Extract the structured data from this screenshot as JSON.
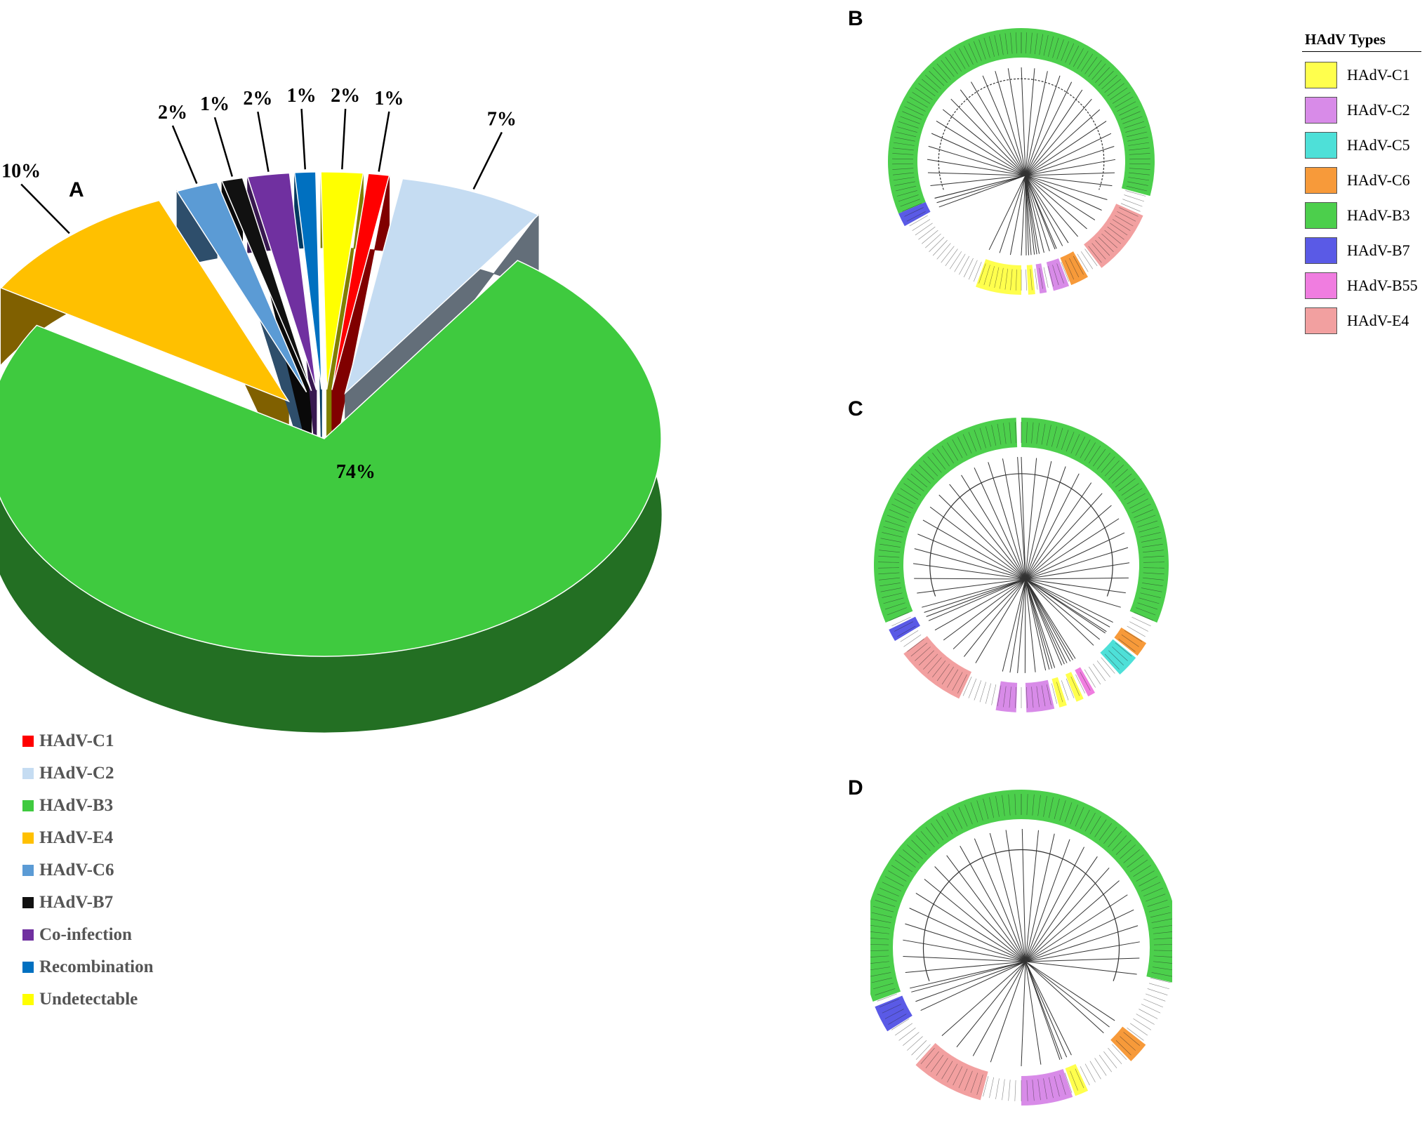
{
  "panels": {
    "a": "A",
    "b": "B",
    "c": "C",
    "d": "D"
  },
  "chart_data": [
    {
      "type": "pie",
      "panel": "A",
      "slices": [
        {
          "label": "HAdV-B3",
          "value": 74,
          "value_label": "74%",
          "color": "#3fca3f",
          "exploded": false
        },
        {
          "label": "HAdV-E4",
          "value": 10,
          "value_label": "10%",
          "color": "#ffc000",
          "exploded": true
        },
        {
          "label": "HAdV-C6",
          "value": 2,
          "value_label": "2%",
          "color": "#5b9bd5",
          "exploded": true
        },
        {
          "label": "HAdV-B7",
          "value": 1,
          "value_label": "1%",
          "color": "#111111",
          "exploded": true
        },
        {
          "label": "Co-infection",
          "value": 2,
          "value_label": "2%",
          "color": "#7030a0",
          "exploded": true
        },
        {
          "label": "Recombination",
          "value": 1,
          "value_label": "1%",
          "color": "#0070c0",
          "exploded": true
        },
        {
          "label": "Undetectable",
          "value": 2,
          "value_label": "2%",
          "color": "#ffff00",
          "exploded": true
        },
        {
          "label": "HAdV-C1",
          "value": 1,
          "value_label": "1%",
          "color": "#ff0000",
          "exploded": true
        },
        {
          "label": "HAdV-C2",
          "value": 7,
          "value_label": "7%",
          "color": "#c5dcf2",
          "exploded": true
        }
      ],
      "legend": [
        {
          "label": "HAdV-C1",
          "color": "#ff0000"
        },
        {
          "label": "HAdV-C2",
          "color": "#c5dcf2"
        },
        {
          "label": "HAdV-B3",
          "color": "#3fca3f"
        },
        {
          "label": "HAdV-E4",
          "color": "#ffc000"
        },
        {
          "label": "HAdV-C6",
          "color": "#5b9bd5"
        },
        {
          "label": "HAdV-B7",
          "color": "#111111"
        },
        {
          "label": "Co-infection",
          "color": "#7030a0"
        },
        {
          "label": "Recombination",
          "color": "#0070c0"
        },
        {
          "label": "Undetectable",
          "color": "#ffff00"
        }
      ],
      "legend_position": "bottom-left"
    },
    {
      "type": "tree",
      "panel": "B",
      "layout": "circular",
      "tip_groups": [
        {
          "type": "HAdV-B3",
          "start_deg": -113,
          "end_deg": 105
        },
        {
          "type": "HAdV-E4",
          "start_deg": 114,
          "end_deg": 143
        },
        {
          "type": "HAdV-C6",
          "start_deg": 150,
          "end_deg": 158
        },
        {
          "type": "HAdV-C2",
          "start_deg": 159,
          "end_deg": 166
        },
        {
          "type": "HAdV-C2",
          "start_deg": 169,
          "end_deg": 172
        },
        {
          "type": "HAdV-C1",
          "start_deg": 174,
          "end_deg": 177
        },
        {
          "type": "HAdV-C1",
          "start_deg": 180,
          "end_deg": 200
        },
        {
          "type": "HAdV-B7",
          "start_deg": 241,
          "end_deg": 247
        }
      ]
    },
    {
      "type": "tree",
      "panel": "C",
      "layout": "circular",
      "tip_groups": [
        {
          "type": "HAdV-B3",
          "start_deg": 0,
          "end_deg": 113
        },
        {
          "type": "HAdV-B3",
          "start_deg": 247,
          "end_deg": 358
        },
        {
          "type": "HAdV-C6",
          "start_deg": 122,
          "end_deg": 128
        },
        {
          "type": "HAdV-C5",
          "start_deg": 129,
          "end_deg": 138
        },
        {
          "type": "HAdV-B55",
          "start_deg": 150,
          "end_deg": 153
        },
        {
          "type": "HAdV-C1",
          "start_deg": 155,
          "end_deg": 158
        },
        {
          "type": "HAdV-C1",
          "start_deg": 162,
          "end_deg": 165
        },
        {
          "type": "HAdV-C2",
          "start_deg": 167,
          "end_deg": 178
        },
        {
          "type": "HAdV-C2",
          "start_deg": 182,
          "end_deg": 190
        },
        {
          "type": "HAdV-E4",
          "start_deg": 205,
          "end_deg": 233
        },
        {
          "type": "HAdV-B7",
          "start_deg": 239,
          "end_deg": 244
        }
      ]
    },
    {
      "type": "tree",
      "panel": "D",
      "layout": "circular",
      "tip_groups": [
        {
          "type": "HAdV-B3",
          "start_deg": -110,
          "end_deg": 103
        },
        {
          "type": "HAdV-C6",
          "start_deg": 128,
          "end_deg": 136
        },
        {
          "type": "HAdV-C1",
          "start_deg": 155,
          "end_deg": 160
        },
        {
          "type": "HAdV-C2",
          "start_deg": 161,
          "end_deg": 180
        },
        {
          "type": "HAdV-E4",
          "start_deg": 195,
          "end_deg": 222
        },
        {
          "type": "HAdV-B7",
          "start_deg": 238,
          "end_deg": 248
        }
      ]
    }
  ],
  "type_legend": {
    "title": "HAdV Types",
    "items": [
      {
        "label": "HAdV-C1",
        "color": "#ffff4d"
      },
      {
        "label": "HAdV-C2",
        "color": "#d88be8"
      },
      {
        "label": "HAdV-C5",
        "color": "#4ee0d8"
      },
      {
        "label": "HAdV-C6",
        "color": "#f79a3a"
      },
      {
        "label": "HAdV-B3",
        "color": "#4ccf4c"
      },
      {
        "label": "HAdV-B7",
        "color": "#5a5ae6"
      },
      {
        "label": "HAdV-B55",
        "color": "#f07de0"
      },
      {
        "label": "HAdV-E4",
        "color": "#f2a0a0"
      }
    ]
  }
}
